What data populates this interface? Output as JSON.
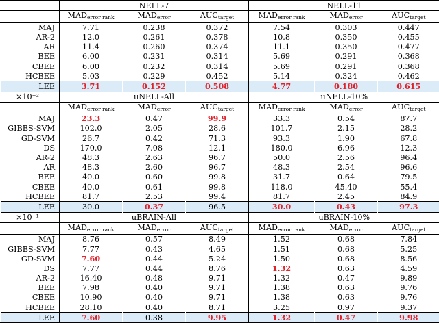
{
  "headers": {
    "mad_error_rank": {
      "main": "MAD",
      "sub": "error rank"
    },
    "mad_error": {
      "main": "MAD",
      "sub": "error"
    },
    "auc_target": {
      "main": "AUC",
      "sub": "target"
    }
  },
  "sections": [
    {
      "scale": "",
      "groups": [
        "NELL-7",
        "NELL-11"
      ],
      "rows": [
        {
          "method": "MAJ",
          "values": [
            "7.71",
            "0.238",
            "0.372",
            "7.54",
            "0.303",
            "0.447"
          ]
        },
        {
          "method": "AR-2",
          "values": [
            "12.0",
            "0.261",
            "0.378",
            "10.8",
            "0.350",
            "0.455"
          ]
        },
        {
          "method": "AR",
          "values": [
            "11.4",
            "0.260",
            "0.374",
            "11.1",
            "0.350",
            "0.477"
          ]
        },
        {
          "method": "BEE",
          "values": [
            "6.00",
            "0.231",
            "0.314",
            "5.69",
            "0.291",
            "0.368"
          ]
        },
        {
          "method": "CBEE",
          "values": [
            "6.00",
            "0.232",
            "0.314",
            "5.69",
            "0.291",
            "0.368"
          ]
        },
        {
          "method": "HCBEE",
          "values": [
            "5.03",
            "0.229",
            "0.452",
            "5.14",
            "0.324",
            "0.462"
          ]
        },
        {
          "method": "LEE",
          "values": [
            "3.71",
            "0.152",
            "0.508",
            "4.77",
            "0.180",
            "0.615"
          ],
          "best": [
            0,
            1,
            2,
            3,
            4,
            5
          ],
          "highlight": true
        }
      ]
    },
    {
      "scale": "×10⁻²",
      "groups": [
        "uNELL-All",
        "uNELL-10%"
      ],
      "rows": [
        {
          "method": "MAJ",
          "values": [
            "23.3",
            "0.47",
            "99.9",
            "33.3",
            "0.54",
            "87.7"
          ],
          "best": [
            0,
            2
          ]
        },
        {
          "method": "GIBBS-SVM",
          "values": [
            "102.0",
            "2.05",
            "28.6",
            "101.7",
            "2.15",
            "28.2"
          ]
        },
        {
          "method": "GD-SVM",
          "values": [
            "26.7",
            "0.42",
            "71.3",
            "93.3",
            "1.90",
            "67.8"
          ]
        },
        {
          "method": "DS",
          "values": [
            "170.0",
            "7.08",
            "12.1",
            "180.0",
            "6.96",
            "12.3"
          ]
        },
        {
          "method": "AR-2",
          "values": [
            "48.3",
            "2.63",
            "96.7",
            "50.0",
            "2.56",
            "96.4"
          ]
        },
        {
          "method": "AR",
          "values": [
            "48.3",
            "2.60",
            "96.7",
            "48.3",
            "2.54",
            "96.6"
          ]
        },
        {
          "method": "BEE",
          "values": [
            "40.0",
            "0.60",
            "99.8",
            "31.7",
            "0.64",
            "79.5"
          ]
        },
        {
          "method": "CBEE",
          "values": [
            "40.0",
            "0.61",
            "99.8",
            "118.0",
            "45.40",
            "55.4"
          ]
        },
        {
          "method": "HCBEE",
          "values": [
            "81.7",
            "2.53",
            "99.4",
            "81.7",
            "2.45",
            "84.9"
          ]
        },
        {
          "method": "LEE",
          "values": [
            "30.0",
            "0.37",
            "96.5",
            "30.0",
            "0.43",
            "97.3"
          ],
          "best": [
            1,
            3,
            4,
            5
          ],
          "highlight": true
        }
      ]
    },
    {
      "scale": "×10⁻¹",
      "groups": [
        "uBRAIN-All",
        "uBRAIN-10%"
      ],
      "rows": [
        {
          "method": "MAJ",
          "values": [
            "8.76",
            "0.57",
            "8.49",
            "1.52",
            "0.68",
            "7.84"
          ]
        },
        {
          "method": "GIBBS-SVM",
          "values": [
            "7.77",
            "0.43",
            "4.65",
            "1.51",
            "0.68",
            "5.25"
          ]
        },
        {
          "method": "GD-SVM",
          "values": [
            "7.60",
            "0.44",
            "5.24",
            "1.50",
            "0.68",
            "8.56"
          ],
          "best": [
            0
          ]
        },
        {
          "method": "DS",
          "values": [
            "7.77",
            "0.44",
            "8.76",
            "1.32",
            "0.63",
            "4.59"
          ],
          "best": [
            3
          ]
        },
        {
          "method": "AR-2",
          "values": [
            "16.40",
            "0.48",
            "9.71",
            "1.32",
            "0.47",
            "9.89"
          ]
        },
        {
          "method": "BEE",
          "values": [
            "7.98",
            "0.40",
            "9.71",
            "1.38",
            "0.63",
            "9.76"
          ]
        },
        {
          "method": "CBEE",
          "values": [
            "10.90",
            "0.40",
            "9.71",
            "1.38",
            "0.63",
            "9.76"
          ]
        },
        {
          "method": "HCBEE",
          "values": [
            "28.10",
            "0.40",
            "8.71",
            "3.25",
            "0.97",
            "9.37"
          ]
        },
        {
          "method": "LEE",
          "values": [
            "7.60",
            "0.38",
            "9.95",
            "1.32",
            "0.47",
            "9.98"
          ],
          "best": [
            0,
            2,
            3,
            4,
            5
          ],
          "highlight": true
        }
      ]
    }
  ]
}
